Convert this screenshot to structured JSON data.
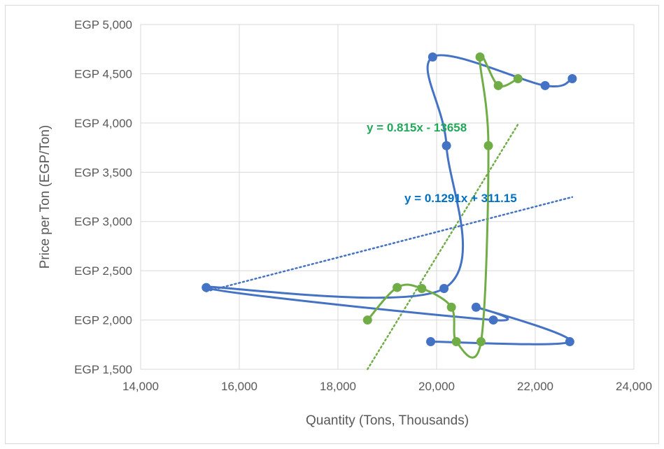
{
  "chart_data": {
    "type": "scatter",
    "title": "",
    "xlabel": "Quantity (Tons, Thousands)",
    "ylabel": "Price per Ton (EGP/Ton)",
    "xlim": [
      14000,
      24000
    ],
    "ylim": [
      1500,
      5000
    ],
    "x_ticks": [
      14000,
      16000,
      18000,
      20000,
      22000,
      24000
    ],
    "x_tick_labels": [
      "14,000",
      "16,000",
      "18,000",
      "20,000",
      "22,000",
      "24,000"
    ],
    "y_ticks": [
      1500,
      2000,
      2500,
      3000,
      3500,
      4000,
      4500,
      5000
    ],
    "y_tick_labels": [
      "EGP 1,500",
      "EGP 2,000",
      "EGP 2,500",
      "EGP 3,000",
      "EGP 3,500",
      "EGP 4,000",
      "EGP 4,500",
      "EGP 5,000"
    ],
    "grid": "vertical and horizontal major gridlines",
    "legend": "none",
    "series": [
      {
        "color": "#4472c4",
        "smoothed": true,
        "points": [
          {
            "x": 22750,
            "y": 4450
          },
          {
            "x": 22200,
            "y": 4380
          },
          {
            "x": 19920,
            "y": 4670
          },
          {
            "x": 20200,
            "y": 3770
          },
          {
            "x": 20150,
            "y": 2320
          },
          {
            "x": 15330,
            "y": 2330
          },
          {
            "x": 21150,
            "y": 2000
          },
          {
            "x": 20800,
            "y": 2130
          },
          {
            "x": 22700,
            "y": 1780
          },
          {
            "x": 19880,
            "y": 1780
          }
        ],
        "trendline": {
          "equation": "y = 0.1291x + 311.15",
          "slope": 0.1291,
          "intercept": 311.15,
          "x_range": [
            15330,
            22750
          ],
          "style": "dotted"
        }
      },
      {
        "color": "#70ad47",
        "smoothed": true,
        "points": [
          {
            "x": 21650,
            "y": 4450
          },
          {
            "x": 21250,
            "y": 4380
          },
          {
            "x": 20880,
            "y": 4670
          },
          {
            "x": 21050,
            "y": 3770
          },
          {
            "x": 20900,
            "y": 1780
          },
          {
            "x": 20400,
            "y": 1780
          },
          {
            "x": 20300,
            "y": 2130
          },
          {
            "x": 19700,
            "y": 2320
          },
          {
            "x": 19200,
            "y": 2330
          },
          {
            "x": 18600,
            "y": 2000
          }
        ],
        "trendline": {
          "equation": "y = 0.815x - 13658",
          "slope": 0.815,
          "intercept": -13658,
          "x_range": [
            18600,
            21650
          ],
          "style": "dotted"
        }
      }
    ]
  }
}
